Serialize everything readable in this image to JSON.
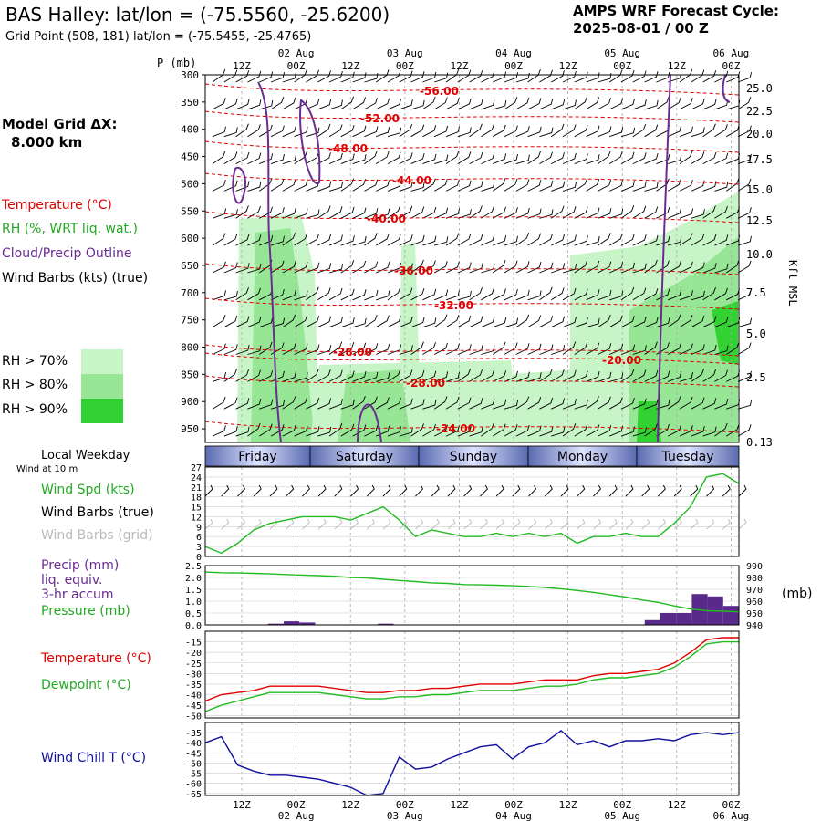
{
  "header": {
    "title": "BAS Halley:  lat/lon = (-75.5560, -25.6200)",
    "subtitle": "Grid Point (508, 181) lat/lon = (-75.5455, -25.4765)",
    "cycle_line1": "AMPS WRF Forecast Cycle:",
    "cycle_line2": "2025-08-01 / 00  Z"
  },
  "legend": {
    "grid_title": "Model Grid ΔX:",
    "grid_value": "8.000 km",
    "temperature": "Temperature (°C)",
    "rh": "RH (%, WRT liq. wat.)",
    "cloud": "Cloud/Precip Outline",
    "wind": "Wind Barbs (kts) (true)",
    "rh70": "RH > 70%",
    "rh80": "RH > 80%",
    "rh90": "RH > 90%",
    "colors": {
      "rh70": "#c8f5c8",
      "rh80": "#96e696",
      "rh90": "#32d232",
      "temp": "#e00000",
      "cloud": "#6a2c91"
    }
  },
  "panel_labels": {
    "pressure_axis": "P (mb)",
    "height_axis": "Kft MSL",
    "local_weekday": "Local Weekday",
    "wind_at_10m": "Wind at 10 m",
    "wind_spd": "Wind Spd (kts)",
    "wind_barbs_true": "Wind Barbs (true)",
    "wind_barbs_grid": "Wind Barbs (grid)",
    "precip": "Precip (mm)",
    "liq_equiv": "liq. equiv.",
    "accum": "3-hr accum",
    "pressure": "Pressure (mb)",
    "pressure_units": "(mb)",
    "temperature": "Temperature (°C)",
    "dewpoint": "Dewpoint (°C)",
    "wind_chill": "Wind Chill T (°C)"
  },
  "time_axis": {
    "top_hours": [
      "12Z",
      "00Z",
      "12Z",
      "00Z",
      "12Z",
      "00Z",
      "12Z",
      "00Z",
      "12Z",
      "00Z"
    ],
    "dates": [
      "02 Aug",
      "03 Aug",
      "04 Aug",
      "05 Aug",
      "06 Aug"
    ],
    "weekdays": [
      "Friday",
      "Saturday",
      "Sunday",
      "Monday",
      "Tuesday"
    ]
  },
  "chart_data": [
    {
      "type": "contour",
      "y_pressure_ticks": [
        "300",
        "350",
        "400",
        "450",
        "500",
        "550",
        "600",
        "650",
        "700",
        "750",
        "800",
        "850",
        "900",
        "950"
      ],
      "y_height_ticks": [
        "25.0",
        "22.5",
        "20.0",
        "17.5",
        "15.0",
        "12.5",
        "10.0",
        "7.5",
        "5.0",
        "2.5",
        "0.13"
      ],
      "temperature_contour_labels": [
        "-56.00",
        "-52.00",
        "-48.00",
        "-44.00",
        "-40.00",
        "-36.00",
        "-32.00",
        "-28.00",
        "-28.00",
        "-24.00",
        "-20.00"
      ]
    },
    {
      "type": "line",
      "y_ticks": [
        "27",
        "24",
        "21",
        "18",
        "15",
        "12",
        "9",
        "6",
        "3",
        "0"
      ],
      "ylim": [
        0,
        27
      ],
      "series": [
        {
          "name": "Wind Spd (kts)",
          "color": "#22bb22",
          "values": [
            3,
            1,
            4,
            8,
            10,
            11,
            12,
            12,
            12,
            11,
            13,
            15,
            11,
            6,
            8,
            7,
            6,
            6,
            7,
            6,
            7,
            6,
            7,
            4,
            6,
            6,
            7,
            6,
            6,
            10,
            15,
            24,
            25,
            22
          ]
        }
      ]
    },
    {
      "type": "bar+line",
      "y_ticks_left": [
        "2.5",
        "2.0",
        "1.5",
        "1.0",
        "0.5",
        "0.0"
      ],
      "y_ticks_right": [
        "990",
        "980",
        "970",
        "960",
        "950",
        "940"
      ],
      "precip_mm": [
        0,
        0,
        0,
        0,
        0.05,
        0.15,
        0.1,
        0,
        0,
        0,
        0,
        0.05,
        0,
        0,
        0,
        0,
        0,
        0,
        0,
        0,
        0,
        0,
        0,
        0,
        0,
        0,
        0,
        0,
        0.2,
        0.5,
        0.5,
        1.3,
        1.2,
        0.8
      ],
      "pressure_mb": [
        984.5,
        984,
        983.8,
        983.5,
        983,
        982.5,
        982,
        981.5,
        981,
        980,
        979.5,
        978.5,
        977.5,
        976.5,
        975.5,
        975,
        974,
        973.8,
        973.5,
        973,
        972.5,
        971.5,
        970.5,
        969,
        967.5,
        965.5,
        963.5,
        961,
        959,
        956,
        953.5,
        952,
        951.5,
        951
      ]
    },
    {
      "type": "line",
      "y_ticks": [
        "-15",
        "-20",
        "-25",
        "-30",
        "-35",
        "-40",
        "-45",
        "-50"
      ],
      "ylim": [
        -50,
        -10
      ],
      "series": [
        {
          "name": "Temperature (°C)",
          "color": "#e00000",
          "values": [
            -43,
            -40,
            -39,
            -38,
            -36,
            -36,
            -36,
            -36,
            -37,
            -38,
            -39,
            -39,
            -38,
            -38,
            -37,
            -37,
            -36,
            -35,
            -35,
            -35,
            -34,
            -33,
            -33,
            -33,
            -31,
            -30,
            -30,
            -29,
            -28,
            -25,
            -20,
            -14,
            -13,
            -13
          ]
        },
        {
          "name": "Dewpoint (°C)",
          "color": "#22bb22",
          "values": [
            -48,
            -45,
            -43,
            -41,
            -39,
            -39,
            -39,
            -39,
            -40,
            -41,
            -42,
            -42,
            -41,
            -41,
            -40,
            -40,
            -39,
            -38,
            -38,
            -38,
            -37,
            -36,
            -36,
            -35,
            -33,
            -32,
            -32,
            -31,
            -30,
            -27,
            -22,
            -16,
            -15,
            -15
          ]
        }
      ]
    },
    {
      "type": "line",
      "y_ticks": [
        "-35",
        "-40",
        "-45",
        "-50",
        "-55",
        "-60",
        "-65"
      ],
      "ylim": [
        -65,
        -30
      ],
      "series": [
        {
          "name": "Wind Chill T (°C)",
          "color": "#1010a0",
          "values": [
            -40,
            -37,
            -51,
            -54,
            -56,
            -56,
            -57,
            -58,
            -60,
            -62,
            -66,
            -65,
            -47,
            -53,
            -52,
            -48,
            -45,
            -42,
            -41,
            -48,
            -42,
            -40,
            -34,
            -41,
            -39,
            -42,
            -39,
            -39,
            -38,
            -39,
            -36,
            -35,
            -36,
            -35
          ]
        }
      ]
    }
  ]
}
